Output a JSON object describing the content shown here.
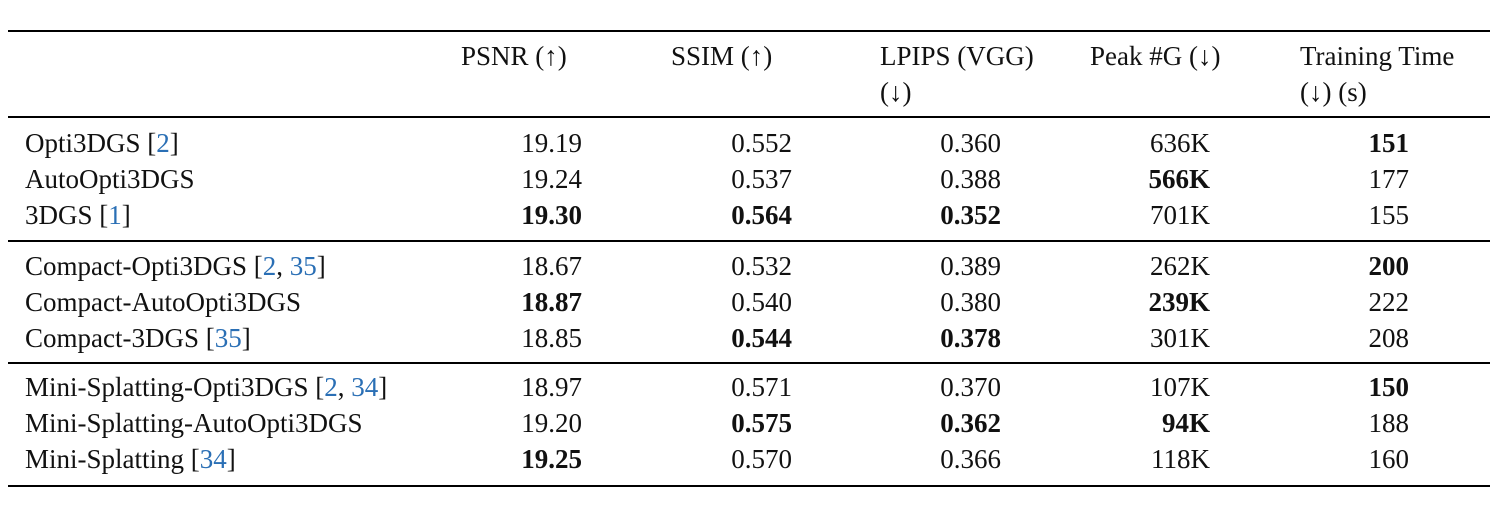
{
  "headers": {
    "psnr": "PSNR (↑)",
    "ssim": "SSIM (↑)",
    "lpips_line1": "LPIPS (VGG)",
    "lpips_line2": "(↓)",
    "peakg": "Peak #G (↓)",
    "time_line1": "Training Time",
    "time_line2": "(↓) (s)"
  },
  "groups": [
    {
      "rows": [
        {
          "name": "Opti3DGS",
          "cites": [
            "2"
          ],
          "psnr": "19.19",
          "ssim": "0.552",
          "lpips": "0.360",
          "peakg": "636K",
          "time": "151",
          "bold": [
            "time"
          ]
        },
        {
          "name": "AutoOpti3DGS",
          "cites": [],
          "psnr": "19.24",
          "ssim": "0.537",
          "lpips": "0.388",
          "peakg": "566K",
          "time": "177",
          "bold": [
            "peakg"
          ]
        },
        {
          "name": "3DGS",
          "cites": [
            "1"
          ],
          "psnr": "19.30",
          "ssim": "0.564",
          "lpips": "0.352",
          "peakg": "701K",
          "time": "155",
          "bold": [
            "psnr",
            "ssim",
            "lpips"
          ]
        }
      ]
    },
    {
      "rows": [
        {
          "name": "Compact-Opti3DGS",
          "cites": [
            "2",
            "35"
          ],
          "psnr": "18.67",
          "ssim": "0.532",
          "lpips": "0.389",
          "peakg": "262K",
          "time": "200",
          "bold": [
            "time"
          ]
        },
        {
          "name": "Compact-AutoOpti3DGS",
          "cites": [],
          "psnr": "18.87",
          "ssim": "0.540",
          "lpips": "0.380",
          "peakg": "239K",
          "time": "222",
          "bold": [
            "psnr",
            "peakg"
          ]
        },
        {
          "name": "Compact-3DGS",
          "cites": [
            "35"
          ],
          "psnr": "18.85",
          "ssim": "0.544",
          "lpips": "0.378",
          "peakg": "301K",
          "time": "208",
          "bold": [
            "ssim",
            "lpips"
          ]
        }
      ]
    },
    {
      "rows": [
        {
          "name": "Mini-Splatting-Opti3DGS",
          "cites": [
            "2",
            "34"
          ],
          "psnr": "18.97",
          "ssim": "0.571",
          "lpips": "0.370",
          "peakg": "107K",
          "time": "150",
          "bold": [
            "time"
          ]
        },
        {
          "name": "Mini-Splatting-AutoOpti3DGS",
          "cites": [],
          "psnr": "19.20",
          "ssim": "0.575",
          "lpips": "0.362",
          "peakg": "94K",
          "time": "188",
          "bold": [
            "ssim",
            "lpips",
            "peakg"
          ]
        },
        {
          "name": "Mini-Splatting",
          "cites": [
            "34"
          ],
          "psnr": "19.25",
          "ssim": "0.570",
          "lpips": "0.366",
          "peakg": "118K",
          "time": "160",
          "bold": [
            "psnr"
          ]
        }
      ]
    }
  ]
}
